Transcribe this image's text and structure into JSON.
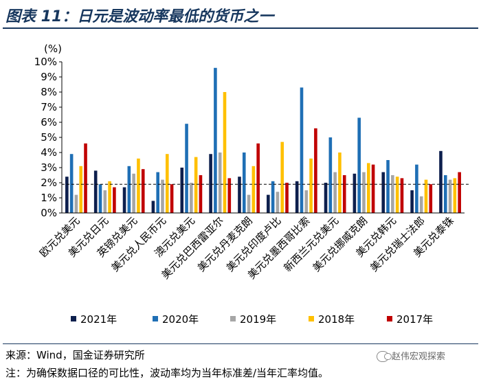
{
  "header": {
    "title": "图表 11：日元是波动率最低的货币之一"
  },
  "footer": {
    "source": "来源：Wind，国金证券研究所",
    "note": "注：为确保数据口径的可比性，波动率均为当年标准差/当年汇率均值。",
    "watermark": "赵伟宏观探索",
    "watermark_icon": "wechat-icon"
  },
  "chart_data": {
    "type": "bar",
    "title": "",
    "unit_label": "(%)",
    "ylim": [
      0,
      10
    ],
    "yticks": [
      "0%",
      "1%",
      "2%",
      "3%",
      "4%",
      "5%",
      "6%",
      "7%",
      "8%",
      "9%",
      "10%"
    ],
    "grid": false,
    "legend_position": "bottom",
    "reference_line": 1.9,
    "categories": [
      "欧元兑美元",
      "美元兑日元",
      "英镑兑美元",
      "美元兑人民币元",
      "澳元兑美元",
      "美元兑巴西雷亚尔",
      "美元兑丹麦克朗",
      "美元兑印度卢比",
      "美元兑墨西哥比索",
      "新西兰元兑美元",
      "美元兑挪威克朗",
      "美元兑韩元",
      "美元兑瑞士法郎",
      "美元兑泰铢"
    ],
    "series": [
      {
        "name": "2021年",
        "color": "#0d1f4d",
        "values": [
          2.4,
          2.8,
          1.7,
          0.8,
          3.0,
          3.9,
          2.4,
          1.2,
          2.1,
          2.0,
          2.6,
          2.7,
          1.5,
          4.1
        ]
      },
      {
        "name": "2020年",
        "color": "#1f6fb5",
        "values": [
          3.9,
          1.9,
          3.1,
          2.7,
          5.9,
          9.6,
          4.0,
          2.1,
          8.3,
          5.0,
          6.3,
          3.5,
          3.2,
          2.5
        ]
      },
      {
        "name": "2019年",
        "color": "#a6a6a6",
        "values": [
          1.2,
          1.5,
          2.6,
          2.2,
          2.0,
          4.0,
          1.2,
          1.4,
          1.5,
          2.7,
          2.7,
          2.5,
          1.1,
          2.2
        ]
      },
      {
        "name": "2018年",
        "color": "#ffc000",
        "values": [
          3.1,
          2.1,
          3.6,
          3.9,
          3.7,
          8.0,
          3.1,
          4.7,
          3.6,
          4.0,
          3.3,
          2.4,
          2.2,
          2.3
        ]
      },
      {
        "name": "2017年",
        "color": "#c00000",
        "values": [
          4.6,
          1.7,
          2.9,
          1.9,
          2.5,
          2.3,
          4.6,
          2.0,
          5.6,
          2.5,
          3.2,
          2.3,
          1.9,
          2.7
        ]
      }
    ]
  }
}
